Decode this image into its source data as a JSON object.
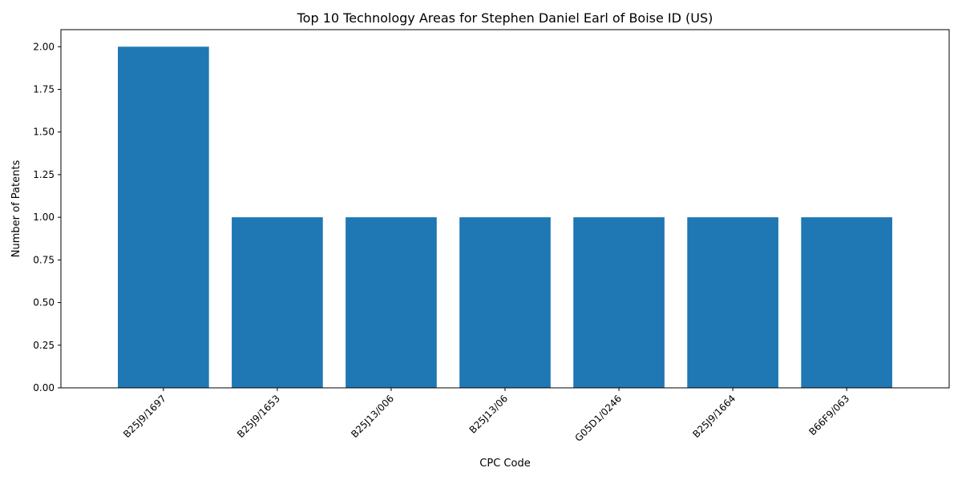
{
  "chart_data": {
    "type": "bar",
    "title": "Top 10 Technology Areas for Stephen Daniel Earl of Boise ID (US)",
    "xlabel": "CPC Code",
    "ylabel": "Number of Patents",
    "categories": [
      "B25J9/1697",
      "B25J9/1653",
      "B25J13/006",
      "B25J13/06",
      "G05D1/0246",
      "B25J9/1664",
      "B66F9/063"
    ],
    "values": [
      2,
      1,
      1,
      1,
      1,
      1,
      1
    ],
    "ylim": [
      0,
      2.1
    ],
    "yticks": [
      "0.00",
      "0.25",
      "0.50",
      "0.75",
      "1.00",
      "1.25",
      "1.50",
      "1.75",
      "2.00"
    ],
    "bar_color": "#1f77b4",
    "grid": false,
    "x_tick_rotation": "45deg, right-aligned"
  }
}
